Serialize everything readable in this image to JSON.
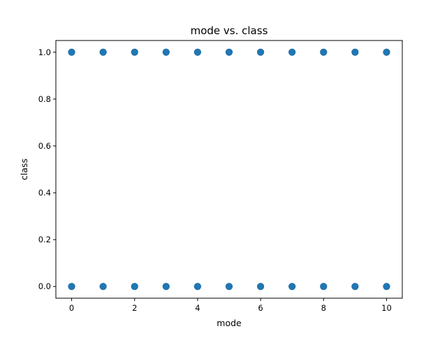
{
  "chart_data": {
    "type": "scatter",
    "title": "mode vs. class",
    "xlabel": "mode",
    "ylabel": "class",
    "xlim": [
      -0.5,
      10.5
    ],
    "ylim": [
      -0.05,
      1.05
    ],
    "xticks": [
      0,
      2,
      4,
      6,
      8,
      10
    ],
    "xtick_labels": [
      "0",
      "2",
      "4",
      "6",
      "8",
      "10"
    ],
    "yticks": [
      0.0,
      0.2,
      0.4,
      0.6,
      0.8,
      1.0
    ],
    "ytick_labels": [
      "0.0",
      "0.2",
      "0.4",
      "0.6",
      "0.8",
      "1.0"
    ],
    "grid": false,
    "marker_color": "#1f77b4",
    "series": [
      {
        "points": [
          {
            "x": 0,
            "y": 1
          },
          {
            "x": 1,
            "y": 1
          },
          {
            "x": 2,
            "y": 1
          },
          {
            "x": 3,
            "y": 1
          },
          {
            "x": 4,
            "y": 1
          },
          {
            "x": 5,
            "y": 1
          },
          {
            "x": 6,
            "y": 1
          },
          {
            "x": 7,
            "y": 1
          },
          {
            "x": 8,
            "y": 1
          },
          {
            "x": 9,
            "y": 1
          },
          {
            "x": 10,
            "y": 1
          },
          {
            "x": 0,
            "y": 0
          },
          {
            "x": 1,
            "y": 0
          },
          {
            "x": 2,
            "y": 0
          },
          {
            "x": 3,
            "y": 0
          },
          {
            "x": 4,
            "y": 0
          },
          {
            "x": 5,
            "y": 0
          },
          {
            "x": 6,
            "y": 0
          },
          {
            "x": 7,
            "y": 0
          },
          {
            "x": 8,
            "y": 0
          },
          {
            "x": 9,
            "y": 0
          },
          {
            "x": 10,
            "y": 0
          }
        ]
      }
    ]
  }
}
